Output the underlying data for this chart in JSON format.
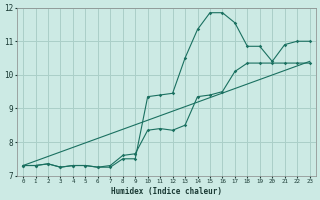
{
  "background_color": "#cceae4",
  "grid_color": "#aacfc8",
  "line_color": "#1a7060",
  "xlim": [
    -0.5,
    23.5
  ],
  "ylim": [
    7,
    12
  ],
  "xlabel": "Humidex (Indice chaleur)",
  "xticks": [
    0,
    1,
    2,
    3,
    4,
    5,
    6,
    7,
    8,
    9,
    10,
    11,
    12,
    13,
    14,
    15,
    16,
    17,
    18,
    19,
    20,
    21,
    22,
    23
  ],
  "yticks": [
    7,
    8,
    9,
    10,
    11,
    12
  ],
  "series1_x": [
    0,
    1,
    2,
    3,
    4,
    5,
    6,
    7,
    8,
    9,
    10,
    11,
    12,
    13,
    14,
    15,
    16,
    17,
    18,
    19,
    20,
    21,
    22,
    23
  ],
  "series1_y": [
    7.3,
    7.3,
    7.35,
    7.25,
    7.3,
    7.3,
    7.25,
    7.25,
    7.5,
    7.5,
    9.35,
    9.4,
    9.45,
    10.5,
    11.35,
    11.85,
    11.85,
    11.55,
    10.85,
    10.85,
    10.4,
    10.9,
    11.0,
    11.0
  ],
  "series2_x": [
    0,
    1,
    2,
    3,
    4,
    5,
    6,
    7,
    8,
    9,
    10,
    11,
    12,
    13,
    14,
    15,
    16,
    17,
    18,
    19,
    20,
    21,
    22,
    23
  ],
  "series2_y": [
    7.3,
    7.3,
    7.35,
    7.25,
    7.3,
    7.3,
    7.25,
    7.3,
    7.6,
    7.65,
    8.35,
    8.4,
    8.35,
    8.5,
    9.35,
    9.4,
    9.5,
    10.1,
    10.35,
    10.35,
    10.35,
    10.35,
    10.35,
    10.35
  ],
  "series3_x": [
    0,
    23
  ],
  "series3_y": [
    7.3,
    10.4
  ]
}
